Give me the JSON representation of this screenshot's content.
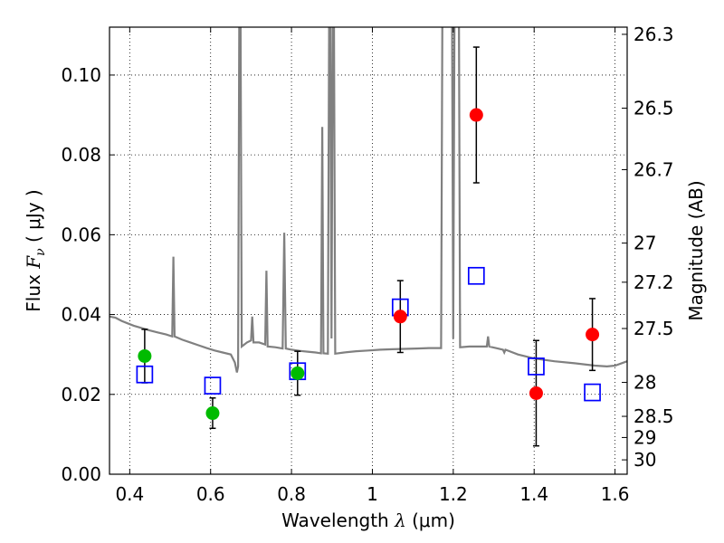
{
  "chart_data": {
    "type": "scatter",
    "xlabel": "Wavelength  λ (μm)",
    "ylabel": "Flux  F_ν  ( μJy )",
    "ylabel_parts": {
      "prefix": "Flux  ",
      "symbol": "F",
      "subscript": "ν",
      "unit": "  ( μJy )"
    },
    "xlabel_parts": {
      "prefix": "Wavelength  ",
      "symbol": "λ",
      "unit": " (μm)"
    },
    "y2label": "Magnitude (AB)",
    "xlim": [
      0.35,
      1.63
    ],
    "ylim": [
      0.0,
      0.112
    ],
    "grid": true,
    "x_ticks": [
      0.4,
      0.6,
      0.8,
      1.0,
      1.2,
      1.4,
      1.6
    ],
    "x_tick_labels": [
      "0.4",
      "0.6",
      "0.8",
      "1",
      "1.2",
      "1.4",
      "1.6"
    ],
    "y_ticks": [
      0.0,
      0.02,
      0.04,
      0.06,
      0.08,
      0.1
    ],
    "y_tick_labels": [
      "0.00",
      "0.02",
      "0.04",
      "0.06",
      "0.08",
      "0.10"
    ],
    "y2_ticks": [
      {
        "label": "26.3",
        "flux": 0.1102
      },
      {
        "label": "26.5",
        "flux": 0.0917
      },
      {
        "label": "26.7",
        "flux": 0.0763
      },
      {
        "label": "27",
        "flux": 0.0579
      },
      {
        "label": "27.2",
        "flux": 0.0481
      },
      {
        "label": "27.5",
        "flux": 0.0365
      },
      {
        "label": "28",
        "flux": 0.023
      },
      {
        "label": "28.5",
        "flux": 0.0145
      },
      {
        "label": "29",
        "flux": 0.0092
      },
      {
        "label": "30",
        "flux": 0.0036
      }
    ],
    "series": [
      {
        "name": "model-spectrum",
        "kind": "line",
        "color": "#808080",
        "points": [
          [
            0.35,
            0.0395
          ],
          [
            0.365,
            0.0392
          ],
          [
            0.38,
            0.0384
          ],
          [
            0.395,
            0.0378
          ],
          [
            0.41,
            0.0372
          ],
          [
            0.43,
            0.0366
          ],
          [
            0.45,
            0.036
          ],
          [
            0.47,
            0.0355
          ],
          [
            0.49,
            0.035
          ],
          [
            0.505,
            0.0345
          ],
          [
            0.508,
            0.0545
          ],
          [
            0.511,
            0.0345
          ],
          [
            0.53,
            0.0337
          ],
          [
            0.55,
            0.033
          ],
          [
            0.57,
            0.0323
          ],
          [
            0.59,
            0.0316
          ],
          [
            0.61,
            0.031
          ],
          [
            0.63,
            0.0305
          ],
          [
            0.65,
            0.03
          ],
          [
            0.66,
            0.028
          ],
          [
            0.665,
            0.0255
          ],
          [
            0.668,
            0.027
          ],
          [
            0.671,
            0.115
          ],
          [
            0.674,
            0.115
          ],
          [
            0.677,
            0.032
          ],
          [
            0.69,
            0.033
          ],
          [
            0.7,
            0.0335
          ],
          [
            0.703,
            0.0395
          ],
          [
            0.706,
            0.033
          ],
          [
            0.72,
            0.033
          ],
          [
            0.735,
            0.0325
          ],
          [
            0.738,
            0.051
          ],
          [
            0.741,
            0.032
          ],
          [
            0.76,
            0.0318
          ],
          [
            0.778,
            0.0315
          ],
          [
            0.782,
            0.0605
          ],
          [
            0.786,
            0.0315
          ],
          [
            0.8,
            0.0312
          ],
          [
            0.82,
            0.0309
          ],
          [
            0.84,
            0.0307
          ],
          [
            0.86,
            0.0305
          ],
          [
            0.873,
            0.0303
          ],
          [
            0.876,
            0.087
          ],
          [
            0.879,
            0.0303
          ],
          [
            0.89,
            0.0302
          ],
          [
            0.893,
            0.115
          ],
          [
            0.896,
            0.115
          ],
          [
            0.899,
            0.034
          ],
          [
            0.902,
            0.115
          ],
          [
            0.905,
            0.115
          ],
          [
            0.908,
            0.0302
          ],
          [
            0.93,
            0.0305
          ],
          [
            0.96,
            0.0308
          ],
          [
            0.99,
            0.031
          ],
          [
            1.02,
            0.0312
          ],
          [
            1.05,
            0.0313
          ],
          [
            1.08,
            0.0314
          ],
          [
            1.11,
            0.0315
          ],
          [
            1.14,
            0.0316
          ],
          [
            1.17,
            0.0316
          ],
          [
            1.173,
            0.115
          ],
          [
            1.197,
            0.115
          ],
          [
            1.2,
            0.034
          ],
          [
            1.203,
            0.115
          ],
          [
            1.214,
            0.115
          ],
          [
            1.217,
            0.0318
          ],
          [
            1.24,
            0.032
          ],
          [
            1.27,
            0.032
          ],
          [
            1.283,
            0.032
          ],
          [
            1.286,
            0.0345
          ],
          [
            1.289,
            0.032
          ],
          [
            1.31,
            0.0315
          ],
          [
            1.323,
            0.0312
          ],
          [
            1.326,
            0.0305
          ],
          [
            1.329,
            0.0312
          ],
          [
            1.36,
            0.03
          ],
          [
            1.4,
            0.029
          ],
          [
            1.45,
            0.0283
          ],
          [
            1.5,
            0.0278
          ],
          [
            1.55,
            0.0272
          ],
          [
            1.58,
            0.027
          ],
          [
            1.6,
            0.0272
          ],
          [
            1.63,
            0.0283
          ]
        ]
      },
      {
        "name": "model-photometry",
        "kind": "open-square",
        "color": "#0000ff",
        "points": [
          [
            0.437,
            0.025
          ],
          [
            0.605,
            0.0222
          ],
          [
            0.815,
            0.0258
          ],
          [
            1.069,
            0.0418
          ],
          [
            1.257,
            0.0497
          ],
          [
            1.405,
            0.027
          ],
          [
            1.544,
            0.0205
          ]
        ]
      },
      {
        "name": "detections",
        "kind": "filled-circle",
        "color": "#ff0000",
        "points": [
          {
            "x": 1.069,
            "y": 0.0395,
            "err": 0.009
          },
          {
            "x": 1.257,
            "y": 0.09,
            "err": 0.017
          },
          {
            "x": 1.405,
            "y": 0.0203,
            "err": 0.0132
          },
          {
            "x": 1.544,
            "y": 0.035,
            "err": 0.009
          }
        ]
      },
      {
        "name": "measurements-green",
        "kind": "filled-circle",
        "color": "#00bb00",
        "points": [
          {
            "x": 0.437,
            "y": 0.0296,
            "err": 0.0067
          },
          {
            "x": 0.605,
            "y": 0.0153,
            "err": 0.0038
          },
          {
            "x": 0.815,
            "y": 0.0253,
            "err": 0.0055
          }
        ]
      }
    ]
  }
}
